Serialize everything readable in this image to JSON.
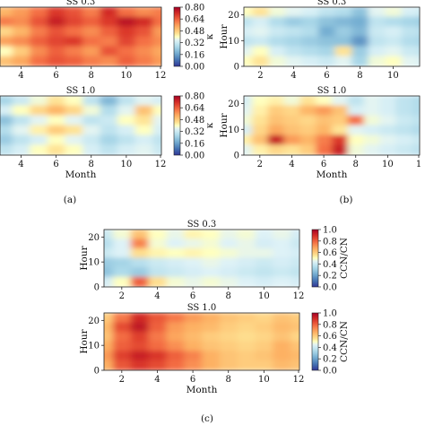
{
  "chart_data": [
    {
      "panel": "(a)",
      "type": "heatmap",
      "title": "SS 0.3",
      "xlabel": "",
      "ylabel": "",
      "x_ticks": [
        "4",
        "6",
        "8",
        "10",
        "12"
      ],
      "y_ticks": [],
      "xlim": [
        2.8,
        12
      ],
      "colorbar": {
        "label": "κ",
        "ticks": [
          "0.00",
          "0.16",
          "0.32",
          "0.48",
          "0.64",
          "0.80"
        ],
        "range": [
          0,
          0.8
        ],
        "colormap": "RdYlBu_r"
      },
      "grid": {
        "months": [
          3,
          4,
          5,
          6,
          7,
          8,
          9,
          10,
          11,
          12
        ],
        "rows": 6,
        "values": [
          [
            0.52,
            0.56,
            0.62,
            0.7,
            0.66,
            0.6,
            0.72,
            0.62,
            0.58,
            0.6
          ],
          [
            0.6,
            0.58,
            0.66,
            0.74,
            0.68,
            0.64,
            0.7,
            0.76,
            0.72,
            0.62
          ],
          [
            0.46,
            0.52,
            0.6,
            0.66,
            0.62,
            0.58,
            0.64,
            0.7,
            0.66,
            0.56
          ],
          [
            0.55,
            0.58,
            0.64,
            0.68,
            0.7,
            0.62,
            0.6,
            0.68,
            0.62,
            0.58
          ],
          [
            0.4,
            0.48,
            0.58,
            0.64,
            0.6,
            0.56,
            0.66,
            0.62,
            0.58,
            0.54
          ],
          [
            0.5,
            0.54,
            0.62,
            0.66,
            0.64,
            0.6,
            0.58,
            0.64,
            0.6,
            0.56
          ]
        ]
      }
    },
    {
      "panel": "(a)",
      "type": "heatmap",
      "title": "SS 1.0",
      "xlabel": "Month",
      "ylabel": "",
      "x_ticks": [
        "4",
        "6",
        "8",
        "10",
        "12"
      ],
      "y_ticks": [],
      "xlim": [
        2.8,
        12
      ],
      "colorbar": {
        "label": "κ",
        "ticks": [
          "0.00",
          "0.16",
          "0.32",
          "0.48",
          "0.64",
          "0.80"
        ],
        "range": [
          0,
          0.8
        ],
        "colormap": "RdYlBu_r"
      },
      "grid": {
        "months": [
          3,
          4,
          5,
          6,
          7,
          8,
          9,
          10,
          11,
          12
        ],
        "rows": 6,
        "values": [
          [
            0.26,
            0.32,
            0.38,
            0.44,
            0.4,
            0.3,
            0.2,
            0.3,
            0.36,
            0.34
          ],
          [
            0.34,
            0.4,
            0.46,
            0.52,
            0.46,
            0.38,
            0.28,
            0.36,
            0.5,
            0.4
          ],
          [
            0.22,
            0.3,
            0.36,
            0.4,
            0.36,
            0.3,
            0.32,
            0.4,
            0.44,
            0.36
          ],
          [
            0.28,
            0.36,
            0.42,
            0.48,
            0.44,
            0.36,
            0.3,
            0.34,
            0.4,
            0.34
          ],
          [
            0.24,
            0.3,
            0.34,
            0.4,
            0.36,
            0.32,
            0.26,
            0.3,
            0.34,
            0.3
          ],
          [
            0.3,
            0.34,
            0.4,
            0.44,
            0.4,
            0.34,
            0.3,
            0.34,
            0.36,
            0.32
          ]
        ]
      }
    },
    {
      "panel": "(b)",
      "type": "heatmap",
      "title": "SS 0.3",
      "xlabel": "",
      "ylabel": "Hour",
      "x_ticks": [
        "2",
        "4",
        "6",
        "8",
        "10"
      ],
      "y_ticks": [
        "0",
        "10",
        "20"
      ],
      "xlim": [
        1,
        11.6
      ],
      "ylim": [
        0,
        23
      ],
      "grid": {
        "months": [
          1,
          2,
          3,
          4,
          5,
          6,
          7,
          8,
          9,
          10,
          11,
          12
        ],
        "rows": 6,
        "values": [
          [
            0.4,
            0.44,
            0.38,
            0.36,
            0.34,
            0.3,
            0.28,
            0.22,
            0.36,
            0.38,
            0.34,
            0.32
          ],
          [
            0.3,
            0.34,
            0.28,
            0.24,
            0.26,
            0.22,
            0.2,
            0.18,
            0.3,
            0.28,
            0.26,
            0.24
          ],
          [
            0.34,
            0.36,
            0.32,
            0.3,
            0.28,
            0.18,
            0.24,
            0.2,
            0.32,
            0.34,
            0.3,
            0.28
          ],
          [
            0.3,
            0.32,
            0.28,
            0.26,
            0.24,
            0.22,
            0.22,
            0.14,
            0.3,
            0.32,
            0.28,
            0.26
          ],
          [
            0.36,
            0.4,
            0.34,
            0.3,
            0.28,
            0.26,
            0.44,
            0.24,
            0.34,
            0.36,
            0.32,
            0.3
          ],
          [
            0.4,
            0.44,
            0.38,
            0.36,
            0.34,
            0.32,
            0.36,
            0.26,
            0.38,
            0.4,
            0.36,
            0.34
          ]
        ]
      }
    },
    {
      "panel": "(b)",
      "type": "heatmap",
      "title": "SS 1.0",
      "xlabel": "Month",
      "ylabel": "Hour",
      "x_ticks": [
        "2",
        "4",
        "6",
        "8",
        "10",
        "1"
      ],
      "y_ticks": [
        "0",
        "10",
        "20"
      ],
      "xlim": [
        1,
        12
      ],
      "ylim": [
        0,
        23
      ],
      "grid": {
        "months": [
          1,
          2,
          3,
          4,
          5,
          6,
          7,
          8,
          9,
          10,
          11,
          12
        ],
        "rows": 6,
        "values": [
          [
            0.34,
            0.4,
            0.42,
            0.38,
            0.44,
            0.4,
            0.36,
            0.3,
            0.36,
            0.34,
            0.3,
            0.28
          ],
          [
            0.36,
            0.42,
            0.48,
            0.46,
            0.52,
            0.56,
            0.5,
            0.34,
            0.36,
            0.34,
            0.3,
            0.28
          ],
          [
            0.38,
            0.44,
            0.5,
            0.48,
            0.46,
            0.5,
            0.48,
            0.62,
            0.38,
            0.36,
            0.32,
            0.3
          ],
          [
            0.34,
            0.46,
            0.54,
            0.5,
            0.48,
            0.52,
            0.44,
            0.36,
            0.34,
            0.32,
            0.3,
            0.28
          ],
          [
            0.42,
            0.5,
            0.74,
            0.56,
            0.52,
            0.6,
            0.7,
            0.4,
            0.38,
            0.36,
            0.34,
            0.32
          ],
          [
            0.36,
            0.42,
            0.46,
            0.44,
            0.48,
            0.62,
            0.74,
            0.38,
            0.36,
            0.34,
            0.32,
            0.3
          ]
        ]
      }
    },
    {
      "panel": "(c)",
      "type": "heatmap",
      "title": "SS 0.3",
      "xlabel": "",
      "ylabel": "Hour",
      "x_ticks": [
        "2",
        "4",
        "6",
        "8",
        "10",
        "12"
      ],
      "y_ticks": [
        "0",
        "10",
        "20"
      ],
      "xlim": [
        1,
        12
      ],
      "ylim": [
        0,
        23
      ],
      "colorbar": {
        "label": "CCN/CN",
        "ticks": [
          "0.0",
          "0.2",
          "0.4",
          "0.6",
          "0.8",
          "1.0"
        ],
        "range": [
          0,
          1
        ],
        "colormap": "RdYlBu_r"
      },
      "grid": {
        "months": [
          1,
          2,
          3,
          4,
          5,
          6,
          7,
          8,
          9,
          10,
          11,
          12
        ],
        "rows": 6,
        "values": [
          [
            0.4,
            0.48,
            0.62,
            0.5,
            0.46,
            0.52,
            0.5,
            0.46,
            0.48,
            0.44,
            0.46,
            0.42
          ],
          [
            0.36,
            0.44,
            0.74,
            0.48,
            0.44,
            0.46,
            0.48,
            0.44,
            0.46,
            0.42,
            0.44,
            0.4
          ],
          [
            0.4,
            0.44,
            0.56,
            0.52,
            0.5,
            0.52,
            0.5,
            0.48,
            0.46,
            0.46,
            0.44,
            0.42
          ],
          [
            0.3,
            0.32,
            0.36,
            0.4,
            0.42,
            0.44,
            0.46,
            0.44,
            0.42,
            0.4,
            0.42,
            0.4
          ],
          [
            0.28,
            0.34,
            0.3,
            0.38,
            0.4,
            0.42,
            0.44,
            0.42,
            0.4,
            0.38,
            0.4,
            0.38
          ],
          [
            0.42,
            0.5,
            0.8,
            0.56,
            0.48,
            0.46,
            0.48,
            0.46,
            0.44,
            0.42,
            0.44,
            0.42
          ]
        ]
      }
    },
    {
      "panel": "(c)",
      "type": "heatmap",
      "title": "SS 1.0",
      "xlabel": "Month",
      "ylabel": "Hour",
      "x_ticks": [
        "2",
        "4",
        "6",
        "8",
        "10",
        "12"
      ],
      "y_ticks": [
        "0",
        "10",
        "20"
      ],
      "xlim": [
        1,
        12
      ],
      "ylim": [
        0,
        23
      ],
      "colorbar": {
        "label": "CCN/CN",
        "ticks": [
          "0.0",
          "0.2",
          "0.4",
          "0.6",
          "0.8",
          "1.0"
        ],
        "range": [
          0,
          1
        ],
        "colormap": "RdYlBu_r"
      },
      "grid": {
        "months": [
          1,
          2,
          3,
          4,
          5,
          6,
          7,
          8,
          9,
          10,
          11,
          12
        ],
        "rows": 6,
        "values": [
          [
            0.6,
            0.76,
            0.9,
            0.82,
            0.76,
            0.7,
            0.66,
            0.62,
            0.6,
            0.58,
            0.62,
            0.6
          ],
          [
            0.64,
            0.84,
            0.94,
            0.8,
            0.7,
            0.66,
            0.64,
            0.6,
            0.58,
            0.6,
            0.64,
            0.62
          ],
          [
            0.62,
            0.78,
            0.86,
            0.76,
            0.68,
            0.64,
            0.6,
            0.58,
            0.56,
            0.58,
            0.62,
            0.58
          ],
          [
            0.66,
            0.8,
            0.84,
            0.78,
            0.72,
            0.66,
            0.62,
            0.6,
            0.58,
            0.6,
            0.66,
            0.62
          ],
          [
            0.7,
            0.86,
            0.92,
            0.88,
            0.8,
            0.74,
            0.66,
            0.62,
            0.6,
            0.62,
            0.66,
            0.64
          ],
          [
            0.66,
            0.82,
            0.88,
            0.84,
            0.78,
            0.72,
            0.66,
            0.62,
            0.6,
            0.6,
            0.64,
            0.62
          ]
        ]
      }
    }
  ],
  "captions": [
    "(a)",
    "(b)",
    "(c)"
  ]
}
